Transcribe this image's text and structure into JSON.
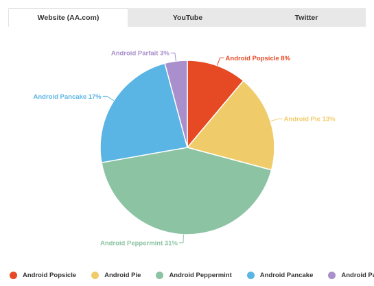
{
  "tabs": [
    {
      "label": "Website (AA.com)",
      "active": true
    },
    {
      "label": "YouTube",
      "active": false
    },
    {
      "label": "Twitter",
      "active": false
    }
  ],
  "chart_data": {
    "type": "pie",
    "title": "",
    "slices": [
      {
        "name": "Android Popsicle",
        "value": 8,
        "label": "Android Popsicle 8%",
        "color": "#e64a24"
      },
      {
        "name": "Android Pie",
        "value": 13,
        "label": "Android Pie 13%",
        "color": "#f0cb69"
      },
      {
        "name": "Android Peppermint",
        "value": 31,
        "label": "Android Peppermint 31%",
        "color": "#8cc3a3"
      },
      {
        "name": "Android Pancake",
        "value": 17,
        "label": "Android Pancake 17%",
        "color": "#5ab4e4"
      },
      {
        "name": "Android Parfait",
        "value": 3,
        "label": "Android Parfait 3%",
        "color": "#a98fcb"
      }
    ],
    "legend_position": "bottom"
  },
  "legend": [
    {
      "label": "Android Popsicle",
      "color": "#e64a24"
    },
    {
      "label": "Android Pie",
      "color": "#f0cb69"
    },
    {
      "label": "Android Peppermint",
      "color": "#8cc3a3"
    },
    {
      "label": "Android Pancake",
      "color": "#5ab4e4"
    },
    {
      "label": "Android Parfait",
      "color": "#a98fcb"
    }
  ]
}
